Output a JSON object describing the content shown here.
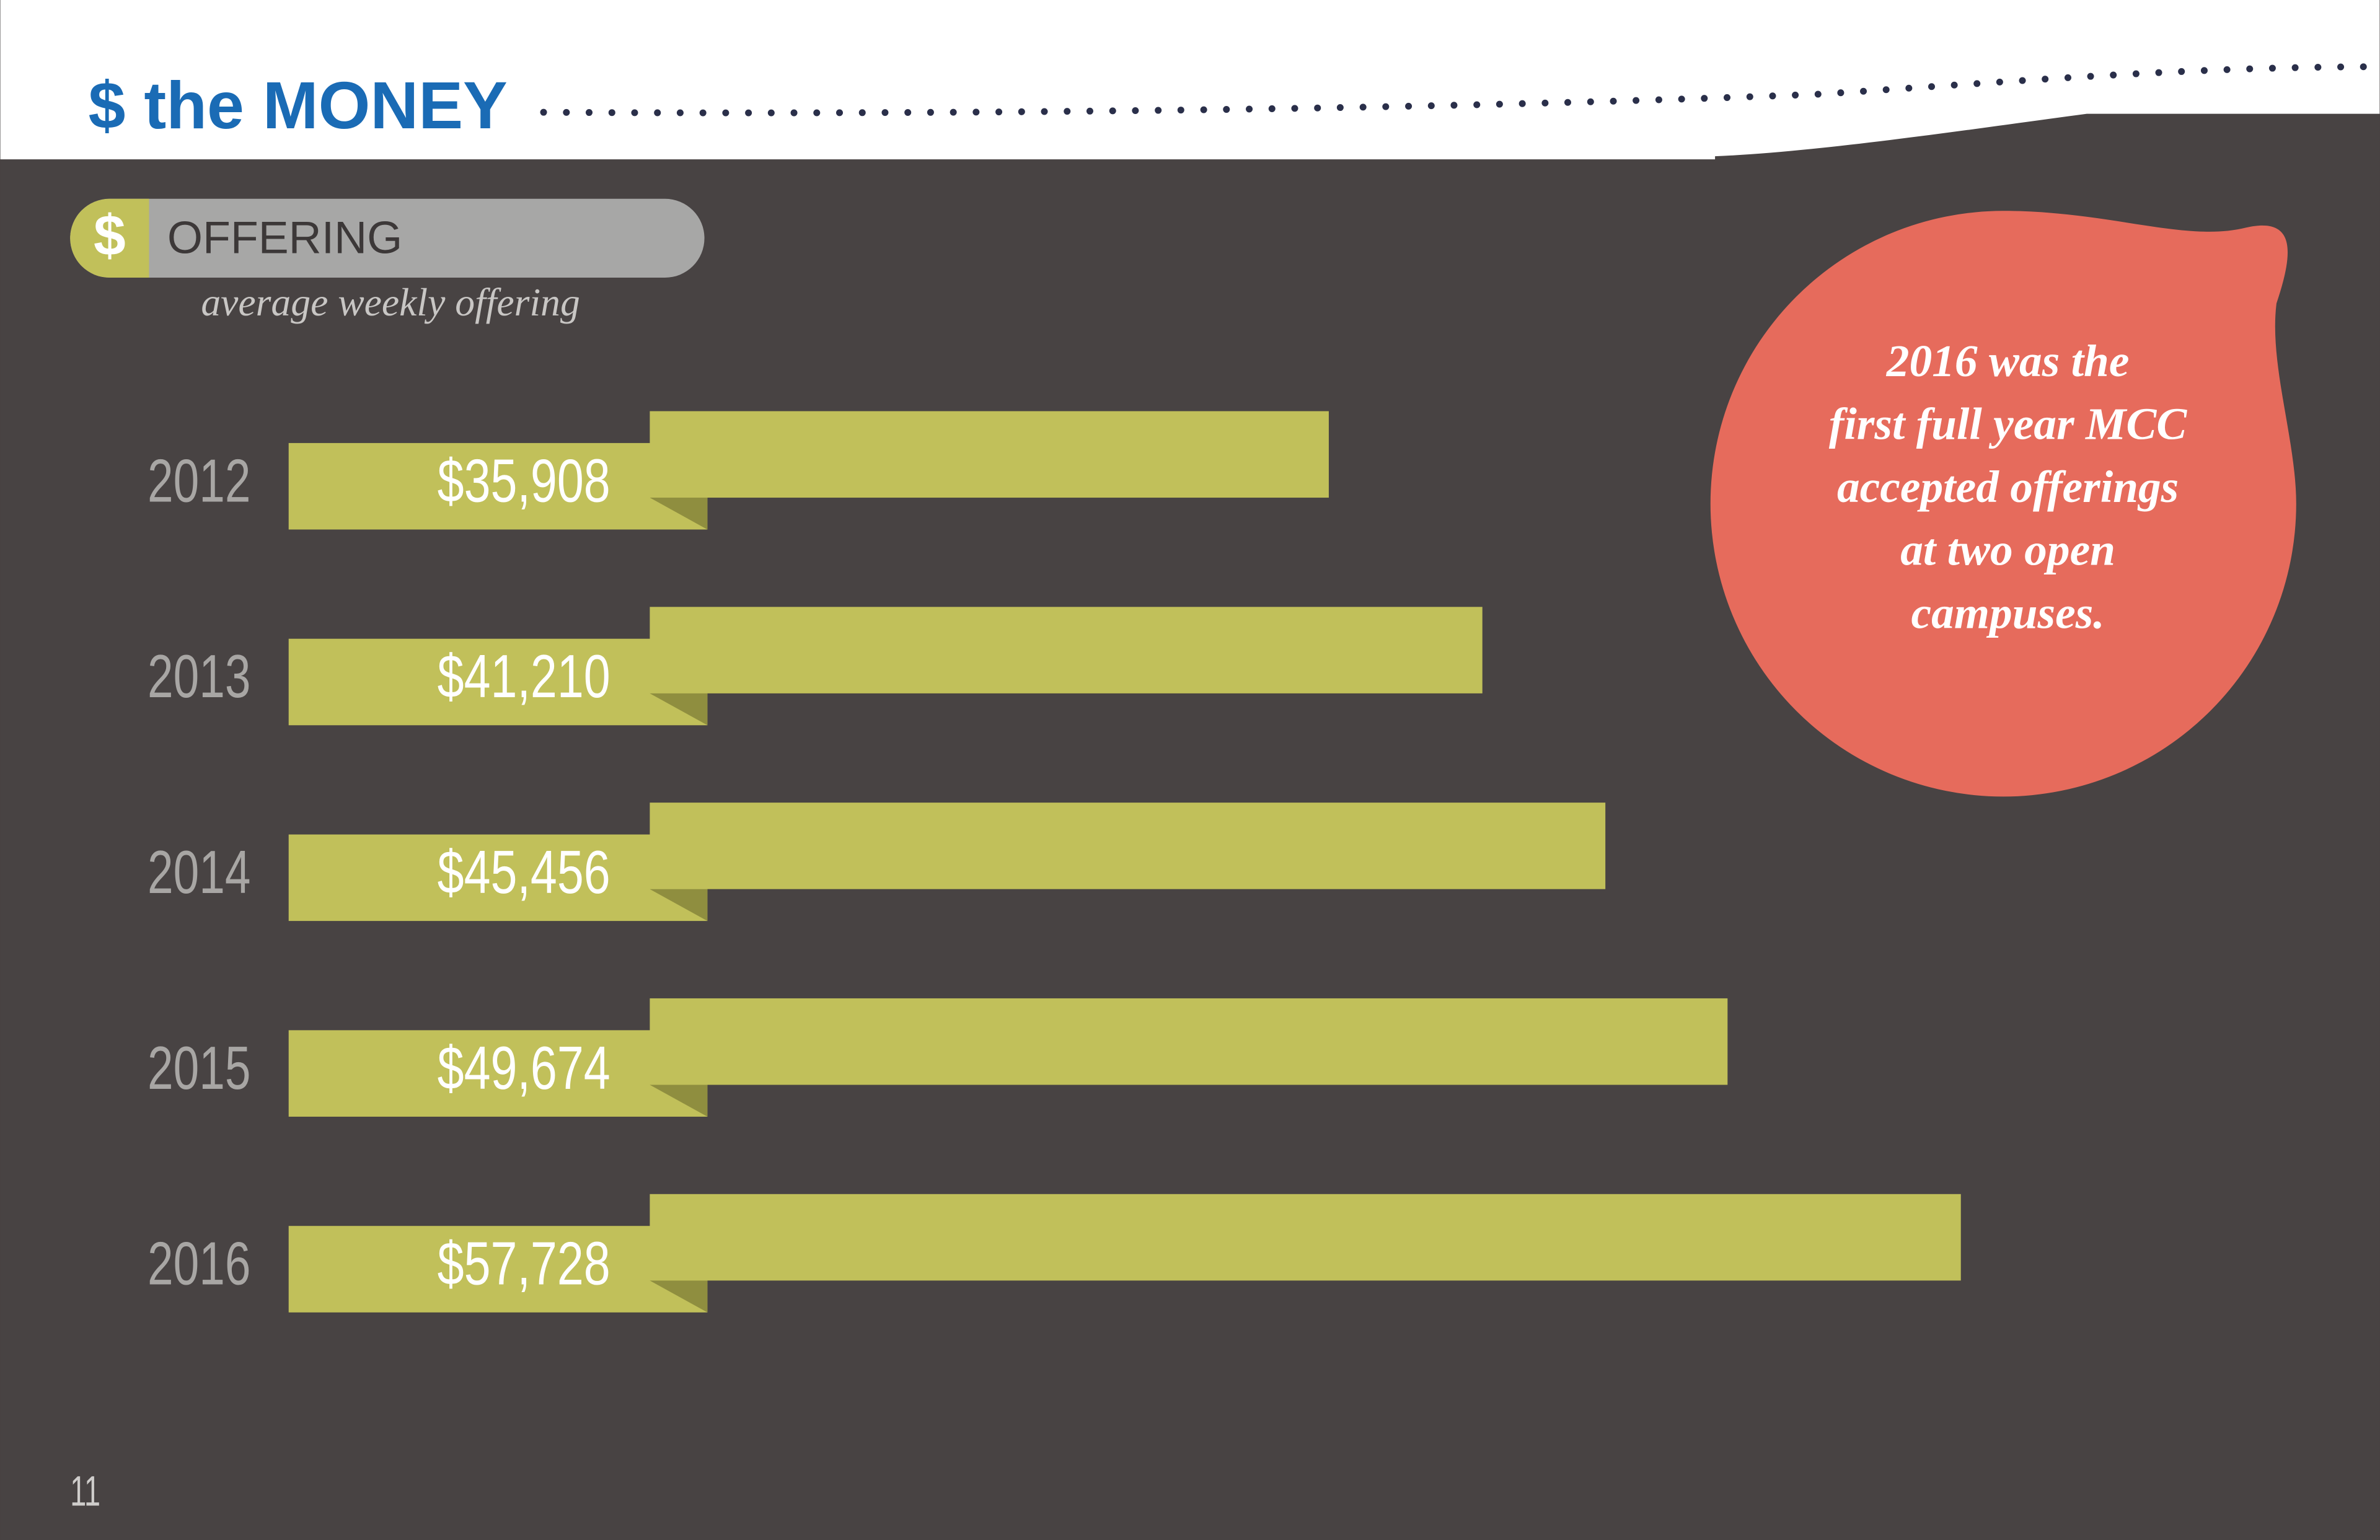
{
  "header": {
    "title": "$ the MONEY"
  },
  "chart_data": {
    "type": "bar",
    "orientation": "horizontal",
    "title": "OFFERING",
    "title_icon": "$",
    "subtitle": "average weekly offering",
    "categories": [
      "2012",
      "2013",
      "2014",
      "2015",
      "2016"
    ],
    "values": [
      35908,
      41210,
      45456,
      49674,
      57728
    ],
    "value_labels": [
      "$35,908",
      "$41,210",
      "$45,456",
      "$49,674",
      "$57,728"
    ],
    "color": "#c1c05a",
    "annotation": [
      "2016 was the",
      "first full year MCC",
      "accepted offerings",
      "at two open",
      "campuses."
    ]
  },
  "page_number": "11"
}
